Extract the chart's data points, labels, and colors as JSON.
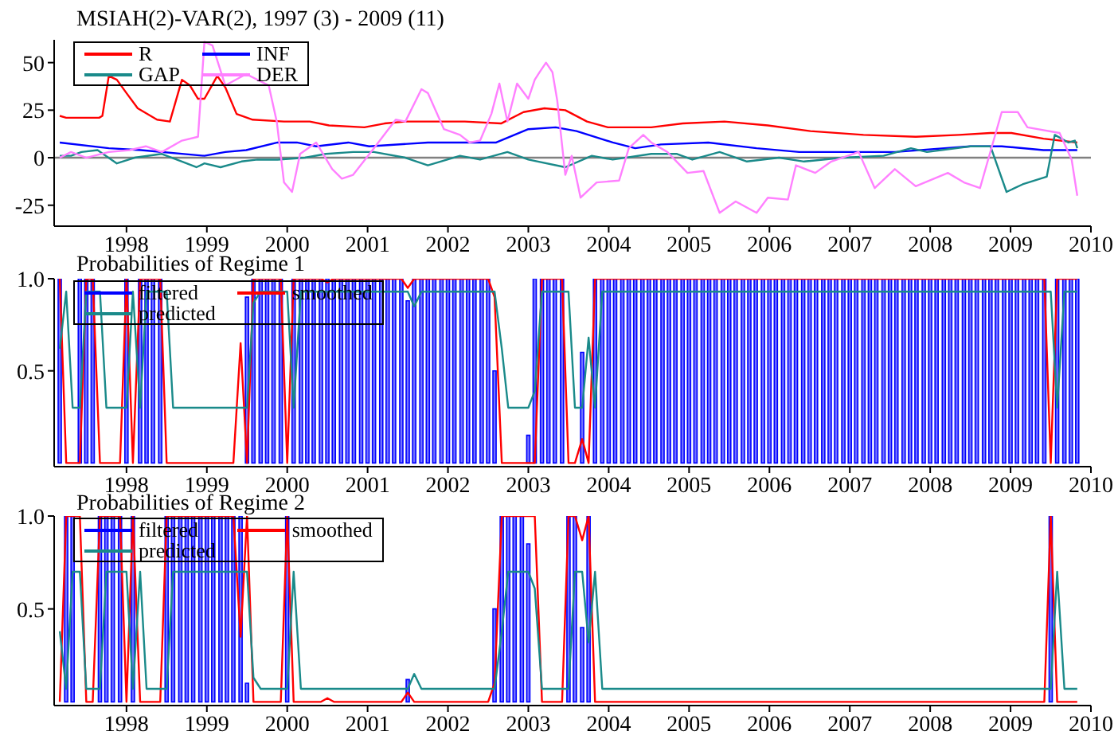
{
  "chart_data": [
    {
      "type": "line",
      "title": "MSIAH(2)-VAR(2), 1997 (3) - 2009 (11)",
      "xlim": [
        1997.1,
        2010
      ],
      "xticks": [
        1998,
        1999,
        2000,
        2001,
        2002,
        2003,
        2004,
        2005,
        2006,
        2007,
        2008,
        2009,
        2010
      ],
      "ylim": [
        -36,
        62
      ],
      "yticks": [
        -25,
        0,
        25,
        50
      ],
      "legend": "top left",
      "ref_lines": [
        {
          "axis": "y",
          "value": 0,
          "color": "#808080"
        }
      ],
      "series": [
        {
          "name": "R",
          "color": "#ff0000",
          "x": [
            1997.17,
            1997.25,
            1997.66,
            1997.7,
            1997.78,
            1997.88,
            1998.0,
            1998.14,
            1998.38,
            1998.54,
            1998.69,
            1998.79,
            1998.89,
            1998.97,
            1999.13,
            1999.23,
            1999.37,
            1999.57,
            1999.96,
            2000.28,
            2000.52,
            2000.96,
            2001.21,
            2001.47,
            2002.21,
            2002.66,
            2002.94,
            2003.2,
            2003.46,
            2003.73,
            2003.99,
            2004.53,
            2004.92,
            2005.44,
            2005.98,
            2006.51,
            2007.17,
            2007.82,
            2008.36,
            2008.75,
            2009.01,
            2009.41,
            2009.83
          ],
          "values": [
            22,
            21,
            21,
            22,
            43,
            41,
            34,
            26,
            20,
            19,
            41,
            38,
            31,
            31,
            43,
            37,
            23,
            20,
            19,
            19,
            17,
            16,
            18,
            19,
            19,
            18,
            24,
            26,
            25,
            19,
            16,
            16,
            18,
            19,
            17,
            14,
            12,
            11,
            12,
            13,
            13,
            10,
            8
          ]
        },
        {
          "name": "INF",
          "color": "#0000ff",
          "x": [
            1997.17,
            1997.78,
            1998.18,
            1998.97,
            1999.23,
            1999.49,
            1999.88,
            2000.12,
            2000.36,
            2000.76,
            2001.02,
            2001.75,
            2002.6,
            2003.0,
            2003.34,
            2003.6,
            2004.05,
            2004.33,
            2004.65,
            2005.24,
            2005.84,
            2006.37,
            2006.91,
            2007.56,
            2008.5,
            2008.89,
            2009.41,
            2009.83
          ],
          "values": [
            8,
            5,
            4,
            1,
            3,
            4,
            8,
            8,
            6,
            8,
            6,
            8,
            8,
            15,
            16,
            14,
            8,
            5,
            7,
            8,
            5,
            3,
            3,
            3,
            6,
            6,
            4,
            4
          ]
        },
        {
          "name": "GAP",
          "color": "#1a8a8a",
          "x": [
            1997.17,
            1997.31,
            1997.44,
            1997.64,
            1997.88,
            1998.1,
            1998.44,
            1998.69,
            1998.87,
            1998.97,
            1999.17,
            1999.43,
            1999.63,
            1999.88,
            2000.22,
            2000.48,
            2000.82,
            2001.08,
            2001.47,
            2001.75,
            2002.15,
            2002.4,
            2002.74,
            2003.0,
            2003.46,
            2003.79,
            2004.05,
            2004.53,
            2004.85,
            2005.04,
            2005.38,
            2005.72,
            2006.12,
            2006.43,
            2006.91,
            2007.42,
            2007.76,
            2007.96,
            2008.5,
            2008.75,
            2008.95,
            2009.15,
            2009.45,
            2009.55,
            2009.72,
            2009.8,
            2009.83
          ],
          "values": [
            1,
            1,
            3,
            4,
            -3,
            0,
            2,
            -2,
            -5,
            -3,
            -5,
            -2,
            -1,
            -1,
            0,
            2,
            3,
            3,
            0,
            -4,
            1,
            -1,
            3,
            -1,
            -5,
            1,
            -1,
            2,
            2,
            -1,
            3,
            -2,
            0,
            -2,
            0,
            1,
            5,
            3,
            6,
            6,
            -18,
            -14,
            -10,
            12,
            8,
            9,
            5
          ]
        },
        {
          "name": "DER",
          "color": "#ff80ff",
          "x": [
            1997.17,
            1997.31,
            1997.5,
            1997.78,
            1998.04,
            1998.24,
            1998.44,
            1998.69,
            1998.89,
            1998.97,
            1999.07,
            1999.23,
            1999.49,
            1999.77,
            1999.87,
            1999.96,
            2000.06,
            2000.16,
            2000.36,
            2000.56,
            2000.68,
            2000.82,
            2001.08,
            2001.35,
            2001.47,
            2001.67,
            2001.75,
            2001.95,
            2002.15,
            2002.27,
            2002.4,
            2002.54,
            2002.64,
            2002.74,
            2002.86,
            2003.0,
            2003.08,
            2003.14,
            2003.22,
            2003.3,
            2003.36,
            2003.46,
            2003.54,
            2003.65,
            2003.85,
            2004.13,
            2004.25,
            2004.43,
            2004.53,
            2004.73,
            2004.98,
            2005.18,
            2005.38,
            2005.58,
            2005.84,
            2005.98,
            2006.23,
            2006.33,
            2006.57,
            2006.77,
            2007.11,
            2007.31,
            2007.56,
            2007.82,
            2008.22,
            2008.42,
            2008.62,
            2008.89,
            2009.09,
            2009.21,
            2009.61,
            2009.76,
            2009.83
          ],
          "values": [
            0,
            3,
            0,
            3,
            4,
            6,
            3,
            9,
            11,
            61,
            59,
            38,
            44,
            38,
            19,
            -13,
            -18,
            2,
            8,
            -6,
            -11,
            -9,
            5,
            20,
            19,
            36,
            34,
            15,
            12,
            8,
            9,
            23,
            39,
            19,
            39,
            31,
            41,
            45,
            50,
            45,
            30,
            -9,
            1,
            -21,
            -13,
            -12,
            5,
            12,
            8,
            3,
            -8,
            -7,
            -29,
            -23,
            -29,
            -21,
            -22,
            -4,
            -8,
            -2,
            3,
            -16,
            -6,
            -15,
            -8,
            -13,
            -16,
            24,
            24,
            16,
            13,
            -1,
            -20
          ]
        }
      ]
    },
    {
      "type": "line",
      "title": "Probabilities of Regime 1",
      "xlim": [
        1997.1,
        2010
      ],
      "xticks": [
        1998,
        1999,
        2000,
        2001,
        2002,
        2003,
        2004,
        2005,
        2006,
        2007,
        2008,
        2009,
        2010
      ],
      "ylim": [
        -0.02,
        1
      ],
      "yticks": [
        0.5,
        {
          "value": 1,
          "label": "1.0"
        }
      ],
      "legend": "top left",
      "x": [
        1997.17,
        1997.25,
        1997.33,
        1997.42,
        1997.5,
        1997.58,
        1997.67,
        1997.75,
        1997.83,
        1997.92,
        1998,
        1998.08,
        1998.17,
        1998.25,
        1998.33,
        1998.42,
        1998.5,
        1998.58,
        1998.67,
        1998.75,
        1998.83,
        1998.92,
        1999,
        1999.08,
        1999.17,
        1999.25,
        1999.33,
        1999.42,
        1999.5,
        1999.58,
        1999.67,
        1999.75,
        1999.83,
        1999.92,
        2000,
        2000.08,
        2000.17,
        2000.25,
        2000.33,
        2000.42,
        2000.5,
        2000.58,
        2000.67,
        2000.75,
        2000.83,
        2000.92,
        2001,
        2001.08,
        2001.17,
        2001.25,
        2001.33,
        2001.42,
        2001.5,
        2001.58,
        2001.67,
        2001.75,
        2001.83,
        2001.92,
        2002,
        2002.08,
        2002.17,
        2002.25,
        2002.33,
        2002.42,
        2002.5,
        2002.58,
        2002.67,
        2002.75,
        2002.83,
        2002.92,
        2003,
        2003.08,
        2003.17,
        2003.25,
        2003.33,
        2003.42,
        2003.5,
        2003.58,
        2003.67,
        2003.75,
        2003.83,
        2003.92,
        2004,
        2004.08,
        2004.17,
        2004.25,
        2004.33,
        2004.42,
        2004.5,
        2004.58,
        2004.67,
        2004.75,
        2004.83,
        2004.92,
        2005,
        2005.08,
        2005.17,
        2005.25,
        2005.33,
        2005.42,
        2005.5,
        2005.58,
        2005.67,
        2005.75,
        2005.83,
        2005.92,
        2006,
        2006.08,
        2006.17,
        2006.25,
        2006.33,
        2006.42,
        2006.5,
        2006.58,
        2006.67,
        2006.75,
        2006.83,
        2006.92,
        2007,
        2007.08,
        2007.17,
        2007.25,
        2007.33,
        2007.42,
        2007.5,
        2007.58,
        2007.67,
        2007.75,
        2007.83,
        2007.92,
        2008,
        2008.08,
        2008.17,
        2008.25,
        2008.33,
        2008.42,
        2008.5,
        2008.58,
        2008.67,
        2008.75,
        2008.83,
        2008.92,
        2009,
        2009.08,
        2009.17,
        2009.25,
        2009.33,
        2009.42,
        2009.5,
        2009.58,
        2009.67,
        2009.75,
        2009.83
      ],
      "series": [
        {
          "name": "filtered",
          "type": "bar",
          "color": "#0000ff",
          "values": [
            1,
            0,
            0,
            1,
            1,
            1,
            0,
            0,
            0,
            0,
            1,
            0,
            1,
            1,
            1,
            1,
            0,
            0,
            0,
            0,
            0,
            0,
            0,
            0,
            0,
            0,
            0,
            0,
            0.9,
            1,
            1,
            1,
            1,
            1,
            0,
            1,
            1,
            1,
            1,
            1,
            1,
            1,
            1,
            1,
            1,
            1,
            1,
            1,
            1,
            1,
            1,
            1,
            0.88,
            1,
            1,
            1,
            1,
            1,
            1,
            1,
            1,
            1,
            1,
            1,
            1,
            0.5,
            0,
            0,
            0,
            0,
            0.15,
            1,
            1,
            1,
            1,
            1,
            0,
            0,
            0.6,
            0,
            1,
            1,
            1,
            1,
            1,
            1,
            1,
            1,
            1,
            1,
            1,
            1,
            1,
            1,
            1,
            1,
            1,
            1,
            1,
            1,
            1,
            1,
            1,
            1,
            1,
            1,
            1,
            1,
            1,
            1,
            1,
            1,
            1,
            1,
            1,
            1,
            1,
            1,
            1,
            1,
            1,
            1,
            1,
            1,
            1,
            1,
            1,
            1,
            1,
            1,
            1,
            1,
            1,
            1,
            1,
            1,
            1,
            1,
            1,
            1,
            1,
            1,
            1,
            1,
            1,
            1,
            1,
            1,
            0,
            1,
            1,
            1,
            1
          ]
        },
        {
          "name": "smoothed",
          "type": "line",
          "color": "#ff0000",
          "values": [
            1,
            0,
            0,
            0,
            1,
            1,
            0,
            0,
            0,
            0,
            1,
            0,
            1,
            1,
            1,
            1,
            0,
            0,
            0,
            0,
            0,
            0,
            0,
            0,
            0,
            0,
            0,
            0.65,
            0,
            1,
            1,
            1,
            1,
            1,
            0,
            1,
            1,
            1,
            1,
            1,
            0.98,
            1,
            1,
            1,
            1,
            1,
            1,
            1,
            1,
            1,
            1,
            1,
            0.95,
            1,
            1,
            1,
            1,
            1,
            1,
            1,
            1,
            1,
            1,
            1,
            1,
            0.9,
            0,
            0,
            0,
            0,
            0,
            0,
            1,
            1,
            1,
            1,
            0,
            0,
            0.13,
            0,
            1,
            1,
            1,
            1,
            1,
            1,
            1,
            1,
            1,
            1,
            1,
            1,
            1,
            1,
            1,
            1,
            1,
            1,
            1,
            1,
            1,
            1,
            1,
            1,
            1,
            1,
            1,
            1,
            1,
            1,
            1,
            1,
            1,
            1,
            1,
            1,
            1,
            1,
            1,
            1,
            1,
            1,
            1,
            1,
            1,
            1,
            1,
            1,
            1,
            1,
            1,
            1,
            1,
            1,
            1,
            1,
            1,
            1,
            1,
            1,
            1,
            1,
            1,
            1,
            1,
            1,
            1,
            1,
            0,
            1,
            1,
            1,
            1
          ]
        },
        {
          "name": "predicted",
          "type": "line",
          "color": "#1a8a8a",
          "values": [
            0.62,
            0.93,
            0.3,
            0.3,
            0.93,
            0.93,
            0.93,
            0.3,
            0.3,
            0.3,
            0.3,
            0.93,
            0.3,
            0.93,
            0.93,
            0.93,
            0.93,
            0.3,
            0.3,
            0.3,
            0.3,
            0.3,
            0.3,
            0.3,
            0.3,
            0.3,
            0.3,
            0.3,
            0.3,
            0.87,
            0.93,
            0.93,
            0.93,
            0.93,
            0.93,
            0.3,
            0.93,
            0.93,
            0.93,
            0.93,
            0.93,
            0.93,
            0.93,
            0.93,
            0.93,
            0.93,
            0.93,
            0.93,
            0.93,
            0.93,
            0.93,
            0.93,
            0.93,
            0.85,
            0.93,
            0.93,
            0.93,
            0.93,
            0.93,
            0.93,
            0.93,
            0.93,
            0.93,
            0.93,
            0.93,
            0.93,
            0.62,
            0.3,
            0.3,
            0.3,
            0.3,
            0.39,
            0.93,
            0.93,
            0.93,
            0.93,
            0.93,
            0.3,
            0.3,
            0.68,
            0.3,
            0.93,
            0.93,
            0.93,
            0.93,
            0.93,
            0.93,
            0.93,
            0.93,
            0.93,
            0.93,
            0.93,
            0.93,
            0.93,
            0.93,
            0.93,
            0.93,
            0.93,
            0.93,
            0.93,
            0.93,
            0.93,
            0.93,
            0.93,
            0.93,
            0.93,
            0.93,
            0.93,
            0.93,
            0.93,
            0.93,
            0.93,
            0.93,
            0.93,
            0.93,
            0.93,
            0.93,
            0.93,
            0.93,
            0.93,
            0.93,
            0.93,
            0.93,
            0.93,
            0.93,
            0.93,
            0.93,
            0.93,
            0.93,
            0.93,
            0.93,
            0.93,
            0.93,
            0.93,
            0.93,
            0.93,
            0.93,
            0.93,
            0.93,
            0.93,
            0.93,
            0.93,
            0.93,
            0.93,
            0.93,
            0.93,
            0.93,
            0.93,
            0.93,
            0.3,
            0.93,
            0.93,
            0.93
          ]
        }
      ]
    },
    {
      "type": "line",
      "title": "Probabilities of Regime 2",
      "xlim": [
        1997.1,
        2010
      ],
      "xticks": [
        1998,
        1999,
        2000,
        2001,
        2002,
        2003,
        2004,
        2005,
        2006,
        2007,
        2008,
        2009,
        2010
      ],
      "ylim": [
        -0.02,
        1
      ],
      "yticks": [
        0.5,
        {
          "value": 1,
          "label": "1.0"
        }
      ],
      "legend": "top left",
      "x": [
        1997.17,
        1997.25,
        1997.33,
        1997.42,
        1997.5,
        1997.58,
        1997.67,
        1997.75,
        1997.83,
        1997.92,
        1998,
        1998.08,
        1998.17,
        1998.25,
        1998.33,
        1998.42,
        1998.5,
        1998.58,
        1998.67,
        1998.75,
        1998.83,
        1998.92,
        1999,
        1999.08,
        1999.17,
        1999.25,
        1999.33,
        1999.42,
        1999.5,
        1999.58,
        1999.67,
        1999.75,
        1999.83,
        1999.92,
        2000,
        2000.08,
        2000.17,
        2000.25,
        2000.33,
        2000.42,
        2000.5,
        2000.58,
        2000.67,
        2000.75,
        2000.83,
        2000.92,
        2001,
        2001.08,
        2001.17,
        2001.25,
        2001.33,
        2001.42,
        2001.5,
        2001.58,
        2001.67,
        2001.75,
        2001.83,
        2001.92,
        2002,
        2002.08,
        2002.17,
        2002.25,
        2002.33,
        2002.42,
        2002.5,
        2002.58,
        2002.67,
        2002.75,
        2002.83,
        2002.92,
        2003,
        2003.08,
        2003.17,
        2003.25,
        2003.33,
        2003.42,
        2003.5,
        2003.58,
        2003.67,
        2003.75,
        2003.83,
        2003.92,
        2004,
        2004.08,
        2004.17,
        2004.25,
        2004.33,
        2004.42,
        2004.5,
        2004.58,
        2004.67,
        2004.75,
        2004.83,
        2004.92,
        2005,
        2005.08,
        2005.17,
        2005.25,
        2005.33,
        2005.42,
        2005.5,
        2005.58,
        2005.67,
        2005.75,
        2005.83,
        2005.92,
        2006,
        2006.08,
        2006.17,
        2006.25,
        2006.33,
        2006.42,
        2006.5,
        2006.58,
        2006.67,
        2006.75,
        2006.83,
        2006.92,
        2007,
        2007.08,
        2007.17,
        2007.25,
        2007.33,
        2007.42,
        2007.5,
        2007.58,
        2007.67,
        2007.75,
        2007.83,
        2007.92,
        2008,
        2008.08,
        2008.17,
        2008.25,
        2008.33,
        2008.42,
        2008.5,
        2008.58,
        2008.67,
        2008.75,
        2008.83,
        2008.92,
        2009,
        2009.08,
        2009.17,
        2009.25,
        2009.33,
        2009.42,
        2009.5,
        2009.58,
        2009.67,
        2009.75,
        2009.83
      ],
      "series": [
        {
          "name": "filtered",
          "type": "bar",
          "color": "#0000ff",
          "values": [
            0,
            1,
            1,
            0,
            0,
            0,
            1,
            1,
            1,
            1,
            0,
            1,
            0,
            0,
            0,
            0,
            1,
            1,
            1,
            1,
            1,
            1,
            1,
            1,
            1,
            1,
            1,
            1,
            0.1,
            0,
            0,
            0,
            0,
            0,
            1,
            0,
            0,
            0,
            0,
            0,
            0,
            0,
            0,
            0,
            0,
            0,
            0,
            0,
            0,
            0,
            0,
            0,
            0.12,
            0,
            0,
            0,
            0,
            0,
            0,
            0,
            0,
            0,
            0,
            0,
            0,
            0.5,
            1,
            1,
            1,
            1,
            0.85,
            0,
            0,
            0,
            0,
            0,
            1,
            1,
            0.4,
            1,
            0,
            0,
            0,
            0,
            0,
            0,
            0,
            0,
            0,
            0,
            0,
            0,
            0,
            0,
            0,
            0,
            0,
            0,
            0,
            0,
            0,
            0,
            0,
            0,
            0,
            0,
            0,
            0,
            0,
            0,
            0,
            0,
            0,
            0,
            0,
            0,
            0,
            0,
            0,
            0,
            0,
            0,
            0,
            0,
            0,
            0,
            0,
            0,
            0,
            0,
            0,
            0,
            0,
            0,
            0,
            0,
            0,
            0,
            0,
            0,
            0,
            0,
            0,
            0,
            0,
            0,
            0,
            0,
            1,
            0,
            0,
            0,
            0
          ]
        },
        {
          "name": "smoothed",
          "type": "line",
          "color": "#ff0000",
          "values": [
            0,
            1,
            1,
            1,
            0,
            0,
            1,
            1,
            1,
            1,
            0,
            1,
            0,
            0,
            0,
            0,
            1,
            1,
            1,
            1,
            1,
            1,
            1,
            1,
            1,
            1,
            1,
            0.35,
            1,
            0,
            0,
            0,
            0,
            0,
            1,
            0,
            0,
            0,
            0,
            0,
            0.02,
            0,
            0,
            0,
            0,
            0,
            0,
            0,
            0,
            0,
            0,
            0,
            0.05,
            0,
            0,
            0,
            0,
            0,
            0,
            0,
            0,
            0,
            0,
            0,
            0,
            0.1,
            1,
            1,
            1,
            1,
            1,
            1,
            0,
            0,
            0,
            0,
            1,
            1,
            0.87,
            1,
            0,
            0,
            0,
            0,
            0,
            0,
            0,
            0,
            0,
            0,
            0,
            0,
            0,
            0,
            0,
            0,
            0,
            0,
            0,
            0,
            0,
            0,
            0,
            0,
            0,
            0,
            0,
            0,
            0,
            0,
            0,
            0,
            0,
            0,
            0,
            0,
            0,
            0,
            0,
            0,
            0,
            0,
            0,
            0,
            0,
            0,
            0,
            0,
            0,
            0,
            0,
            0,
            0,
            0,
            0,
            0,
            0,
            0,
            0,
            0,
            0,
            0,
            0,
            0,
            0,
            0,
            0,
            0,
            1,
            0,
            0,
            0,
            0
          ]
        },
        {
          "name": "predicted",
          "type": "line",
          "color": "#1a8a8a",
          "values": [
            0.38,
            0.07,
            0.7,
            0.7,
            0.07,
            0.07,
            0.07,
            0.7,
            0.7,
            0.7,
            0.7,
            0.07,
            0.7,
            0.07,
            0.07,
            0.07,
            0.07,
            0.7,
            0.7,
            0.7,
            0.7,
            0.7,
            0.7,
            0.7,
            0.7,
            0.7,
            0.7,
            0.7,
            0.7,
            0.13,
            0.07,
            0.07,
            0.07,
            0.07,
            0.07,
            0.7,
            0.07,
            0.07,
            0.07,
            0.07,
            0.07,
            0.07,
            0.07,
            0.07,
            0.07,
            0.07,
            0.07,
            0.07,
            0.07,
            0.07,
            0.07,
            0.07,
            0.07,
            0.15,
            0.07,
            0.07,
            0.07,
            0.07,
            0.07,
            0.07,
            0.07,
            0.07,
            0.07,
            0.07,
            0.07,
            0.07,
            0.38,
            0.7,
            0.7,
            0.7,
            0.7,
            0.61,
            0.07,
            0.07,
            0.07,
            0.07,
            0.07,
            0.7,
            0.7,
            0.32,
            0.7,
            0.07,
            0.07,
            0.07,
            0.07,
            0.07,
            0.07,
            0.07,
            0.07,
            0.07,
            0.07,
            0.07,
            0.07,
            0.07,
            0.07,
            0.07,
            0.07,
            0.07,
            0.07,
            0.07,
            0.07,
            0.07,
            0.07,
            0.07,
            0.07,
            0.07,
            0.07,
            0.07,
            0.07,
            0.07,
            0.07,
            0.07,
            0.07,
            0.07,
            0.07,
            0.07,
            0.07,
            0.07,
            0.07,
            0.07,
            0.07,
            0.07,
            0.07,
            0.07,
            0.07,
            0.07,
            0.07,
            0.07,
            0.07,
            0.07,
            0.07,
            0.07,
            0.07,
            0.07,
            0.07,
            0.07,
            0.07,
            0.07,
            0.07,
            0.07,
            0.07,
            0.07,
            0.07,
            0.07,
            0.07,
            0.07,
            0.07,
            0.07,
            0.07,
            0.7,
            0.07,
            0.07,
            0.07
          ]
        }
      ]
    }
  ]
}
